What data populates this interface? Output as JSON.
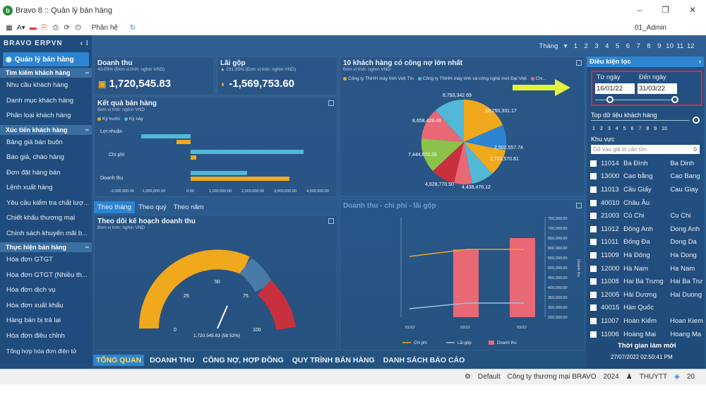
{
  "window": {
    "title": "Bravo 8 :: Quản lý bán hàng",
    "user": "01_Admin"
  },
  "toolbar": {
    "menu": "Phân hệ"
  },
  "sidebar": {
    "brand": "BRAVO ERPVN",
    "module": "Quản lý bán hàng",
    "groups": [
      {
        "label": "Tìm kiếm khách hàng",
        "items": [
          "Nhu cầu khách hàng",
          "Danh mục khách hàng",
          "Phân loại khách hàng"
        ]
      },
      {
        "label": "Xúc tiến khách hàng",
        "items": [
          "Bảng giá bán buôn",
          "Báo giá, chào hàng",
          "Đơn đặt hàng bán",
          "Lệnh xuất hàng",
          "Yêu cầu kiểm tra chất lượ...",
          "Chiết khấu thương mại",
          "Chính sách khuyến mãi b..."
        ]
      },
      {
        "label": "Thực hiện bán hàng",
        "items": [
          "Hóa đơn GTGT",
          "Hóa đơn GTGT (Nhiều th...",
          "Hóa đơn dịch vụ",
          "Hóa đơn xuất khẩu",
          "Hàng bán bị trả lại",
          "Hóa đơn điều chỉnh",
          "Tổng hợp hóa đơn điện tử"
        ]
      }
    ]
  },
  "months": {
    "label": "Tháng",
    "values": [
      "1",
      "2",
      "3",
      "4",
      "5",
      "6",
      "7",
      "8",
      "9",
      "10",
      "11",
      "12"
    ]
  },
  "kpi": {
    "revenue": {
      "title": "Doanh thu",
      "sub": "40.05% (Đơn vị tính: nghìn VND)",
      "value": "1,720,545.83"
    },
    "profit": {
      "title": "Lãi gộp",
      "sub": "▲ 231.95% (Đơn vị tính: nghìn VND)",
      "value": "-1,569,753.60"
    }
  },
  "debt": {
    "title": "10 khách hàng có công nợ lớn nhất",
    "sub": "Đơn vị tính: nghìn VND",
    "legend": [
      "Công ty TNHH máy tính Việt Tín",
      "Công ty TNHH máy tính và công nghệ mới Đại Việt",
      "Chi..."
    ],
    "labels": [
      "8,793,342.69",
      "10,750,331.17",
      "2,502,557.74",
      "2,720,570.61",
      "4,438,476.12",
      "4,628,770.50",
      "7,444,670.26",
      "8,658,428.46"
    ]
  },
  "result": {
    "title": "Kết quả bán hàng",
    "sub": "Đơn vị tính: nghìn VND",
    "legend": [
      "Kỳ trước",
      "Kỳ này"
    ],
    "rows": [
      "Lợi nhuận",
      "Chi phí",
      "Doanh thu"
    ],
    "ticks": [
      "-2,000,000.00",
      "-1,000,000.00",
      "0.00",
      "1,000,000.00",
      "2,000,000.00",
      "3,000,000.00",
      "4,000,000.00"
    ]
  },
  "plan": {
    "tabs": [
      "Theo tháng",
      "Theo quý",
      "Theo năm"
    ],
    "title": "Theo dõi kế hoạch doanh thu",
    "sub": "Đơn vị tính: nghìn VND",
    "ticks": [
      "0",
      "25",
      "50",
      "75",
      "100"
    ],
    "value_label": "1,720,545.83 (58.52%)"
  },
  "combo": {
    "title": "Doanh thu - chi phí - lãi gộp",
    "yticks": [
      "750,000.00",
      "700,000.00",
      "650,000.00",
      "600,000.00",
      "550,000.00",
      "500,000.00",
      "450,000.00",
      "400,000.00",
      "350,000.00",
      "300,000.00",
      "250,000.00"
    ],
    "xticks": [
      "01/22",
      "02/22",
      "03/22"
    ],
    "legend": [
      "Chi phí",
      "Lãi gộp",
      "Doanh thu"
    ],
    "axis_label": "Doanh thu"
  },
  "filter": {
    "title": "Điều kiện lọc",
    "from_label": "Từ ngày",
    "to_label": "Đến ngày",
    "from": "16/01/22",
    "to": "31/03/22",
    "top_label": "Top dữ liệu khách hàng",
    "top_values": [
      "1",
      "2",
      "3",
      "4",
      "5",
      "6",
      "7",
      "8",
      "9",
      "10"
    ],
    "area_label": "Khu vực",
    "search_placeholder": "Gõ vào giá trị cần tìm",
    "search_count": "0",
    "areas": [
      [
        "11014",
        "Ba Đình",
        "Ba Dinh"
      ],
      [
        "13000",
        "Cao bằng",
        "Cao Bang"
      ],
      [
        "11013",
        "Cầu Giấy",
        "Cau Giay"
      ],
      [
        "40010",
        "Châu Âu",
        ""
      ],
      [
        "21003",
        "Củ Chi",
        "Cu Chi"
      ],
      [
        "11012",
        "Đông Anh",
        "Dong Anh"
      ],
      [
        "11011",
        "Đống Đa",
        "Dong Da"
      ],
      [
        "11009",
        "Hà Đông",
        "Ha Dong"
      ],
      [
        "12000",
        "Hà Nam",
        "Ha Nam"
      ],
      [
        "11008",
        "Hai Bà Trưng",
        "Hai Ba Trư"
      ],
      [
        "12005",
        "Hải Dương",
        "Hai Duong"
      ],
      [
        "40015",
        "Hàn Quốc",
        ""
      ],
      [
        "11007",
        "Hoàn Kiếm",
        "Hoan Kiem"
      ],
      [
        "11006",
        "Hoàng Mai",
        "Hoang Ma"
      ]
    ],
    "time_label": "Thời gian làm mới",
    "time_value": "27/07/2022 02:50:41 PM"
  },
  "bottom_tabs": [
    "TỔNG QUAN",
    "DOANH THU",
    "CÔNG NỢ, HỢP ĐỒNG",
    "QUY TRÌNH BÁN HÀNG",
    "DANH SÁCH BÁO CÁO"
  ],
  "status": {
    "db": "Default",
    "company": "Công ty thương mại BRAVO",
    "year": "2024",
    "user": "THUYTT",
    "num": "20"
  },
  "colors": {
    "accent": "#2d85d2",
    "orange": "#f0a81d",
    "teal": "#52b8d6",
    "pink": "#e86876",
    "red": "#c9303d"
  }
}
